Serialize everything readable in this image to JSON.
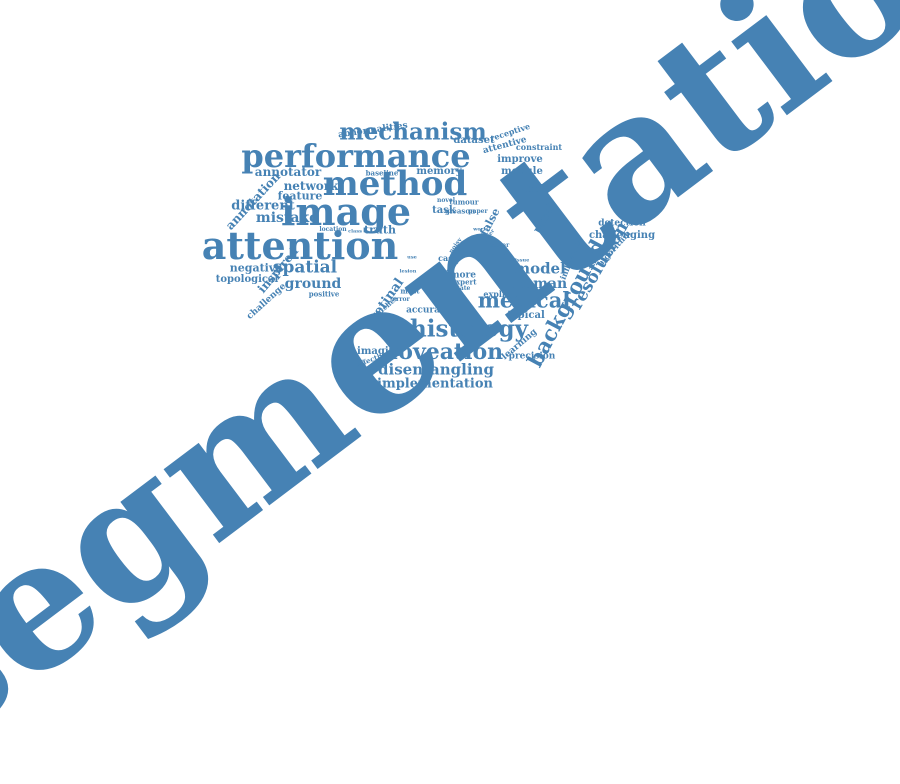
{
  "colors": {
    "word": "#4682b4",
    "background": "#ffffff"
  },
  "words": [
    {
      "key": "segmentation",
      "text": "segmentation"
    },
    {
      "key": "attention",
      "text": "attention"
    },
    {
      "key": "image",
      "text": "image"
    },
    {
      "key": "method",
      "text": "method"
    },
    {
      "key": "performance",
      "text": "performance"
    },
    {
      "key": "mechanism",
      "text": "mechanism"
    },
    {
      "key": "histology",
      "text": "histology"
    },
    {
      "key": "foveation",
      "text": "foveation"
    },
    {
      "key": "medical",
      "text": "medical"
    },
    {
      "key": "background",
      "text": "background"
    },
    {
      "key": "resolution",
      "text": "resolution"
    },
    {
      "key": "disentangling",
      "text": "disentangling"
    },
    {
      "key": "implementation",
      "text": "implementation"
    },
    {
      "key": "spatial",
      "text": "spatial"
    },
    {
      "key": "ground",
      "text": "ground"
    },
    {
      "key": "model",
      "text": "model"
    },
    {
      "key": "human",
      "text": "human"
    },
    {
      "key": "mistake",
      "text": "mistake"
    },
    {
      "key": "different",
      "text": "different"
    },
    {
      "key": "network",
      "text": "network"
    },
    {
      "key": "annotation",
      "text": "annotation"
    },
    {
      "key": "annotator",
      "text": "annotator"
    },
    {
      "key": "feature",
      "text": "feature"
    },
    {
      "key": "truth",
      "text": "truth"
    },
    {
      "key": "retinal",
      "text": "retinal"
    },
    {
      "key": "negative",
      "text": "negative"
    },
    {
      "key": "inspired",
      "text": "inspired"
    },
    {
      "key": "topological",
      "text": "topological"
    },
    {
      "key": "challenge",
      "text": "challenge"
    },
    {
      "key": "positive",
      "text": "positive"
    },
    {
      "key": "imaging",
      "text": "imaging"
    },
    {
      "key": "abnormalities",
      "text": "abnormalities"
    },
    {
      "key": "dataset",
      "text": "dataset"
    },
    {
      "key": "receptive",
      "text": "receptive"
    },
    {
      "key": "attentive",
      "text": "attentive"
    },
    {
      "key": "improve",
      "text": "improve"
    },
    {
      "key": "constraint",
      "text": "constraint"
    },
    {
      "key": "module",
      "text": "module"
    },
    {
      "key": "memory",
      "text": "memory"
    },
    {
      "key": "baseline",
      "text": "baseline"
    },
    {
      "key": "label",
      "text": "label"
    },
    {
      "key": "pixel",
      "text": "pixel"
    },
    {
      "key": "false",
      "text": "false"
    },
    {
      "key": "task",
      "text": "task"
    },
    {
      "key": "tumour",
      "text": "tumour"
    },
    {
      "key": "gleason",
      "text": "gleason"
    },
    {
      "key": "novel",
      "text": "novel"
    },
    {
      "key": "paper",
      "text": "paper"
    },
    {
      "key": "detection",
      "text": "detection"
    },
    {
      "key": "challenging",
      "text": "challenging"
    },
    {
      "key": "algorithm",
      "text": "algorithm"
    },
    {
      "key": "influence",
      "text": "influence"
    },
    {
      "key": "learning",
      "text": "learning"
    },
    {
      "key": "typical",
      "text": "typical"
    },
    {
      "key": "precision",
      "text": "precision"
    },
    {
      "key": "accurate",
      "text": "accurate"
    },
    {
      "key": "explicit",
      "text": "explicit"
    },
    {
      "key": "effective",
      "text": "effective"
    },
    {
      "key": "location",
      "text": "location"
    },
    {
      "key": "most",
      "text": "most"
    },
    {
      "key": "error",
      "text": "error"
    },
    {
      "key": "case",
      "text": "case"
    },
    {
      "key": "more",
      "text": "more"
    },
    {
      "key": "expert",
      "text": "expert"
    },
    {
      "key": "state",
      "text": "state"
    },
    {
      "key": "area",
      "text": "area"
    },
    {
      "key": "noisy",
      "text": "noisy"
    },
    {
      "key": "range",
      "text": "range"
    },
    {
      "key": "better",
      "text": "better"
    },
    {
      "key": "tissue",
      "text": "tissue"
    },
    {
      "key": "lesion",
      "text": "lesion"
    },
    {
      "key": "patches",
      "text": "patches"
    },
    {
      "key": "trade",
      "text": "trade"
    },
    {
      "key": "work",
      "text": "work"
    },
    {
      "key": "class",
      "text": "class"
    },
    {
      "key": "use",
      "text": "use"
    },
    {
      "key": "layer",
      "text": "layer"
    }
  ]
}
